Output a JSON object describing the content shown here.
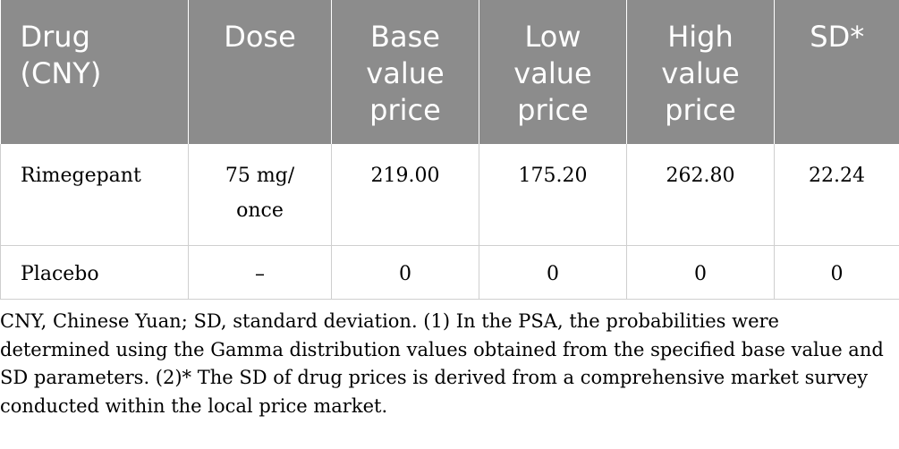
{
  "table": {
    "headers": {
      "drug": [
        "Drug",
        "(CNY)"
      ],
      "dose": [
        "Dose"
      ],
      "base": [
        "Base",
        "value",
        "price"
      ],
      "low": [
        "Low",
        "value",
        "price"
      ],
      "high": [
        "High",
        "value",
        "price"
      ],
      "sd": [
        "SD*"
      ]
    },
    "rows": [
      {
        "drug": "Rimegepant",
        "dose": [
          "75 mg/",
          "once"
        ],
        "base": "219.00",
        "low": "175.20",
        "high": "262.80",
        "sd": "22.24"
      },
      {
        "drug": "Placebo",
        "dose": [
          "–"
        ],
        "base": "0",
        "low": "0",
        "high": "0",
        "sd": "0"
      }
    ]
  },
  "footnote": {
    "lines": [
      "CNY, Chinese Yuan; SD, standard deviation. (1) In the PSA, the probabilities were",
      "determined using the Gamma distribution values obtained from the specified base value and",
      "SD parameters. (2)* The SD of drug prices is derived from a comprehensive market survey",
      "conducted within the local price market."
    ]
  },
  "colors": {
    "header_bg": "#8c8c8c",
    "header_text": "#ffffff",
    "grid": "#cfcfcf"
  }
}
